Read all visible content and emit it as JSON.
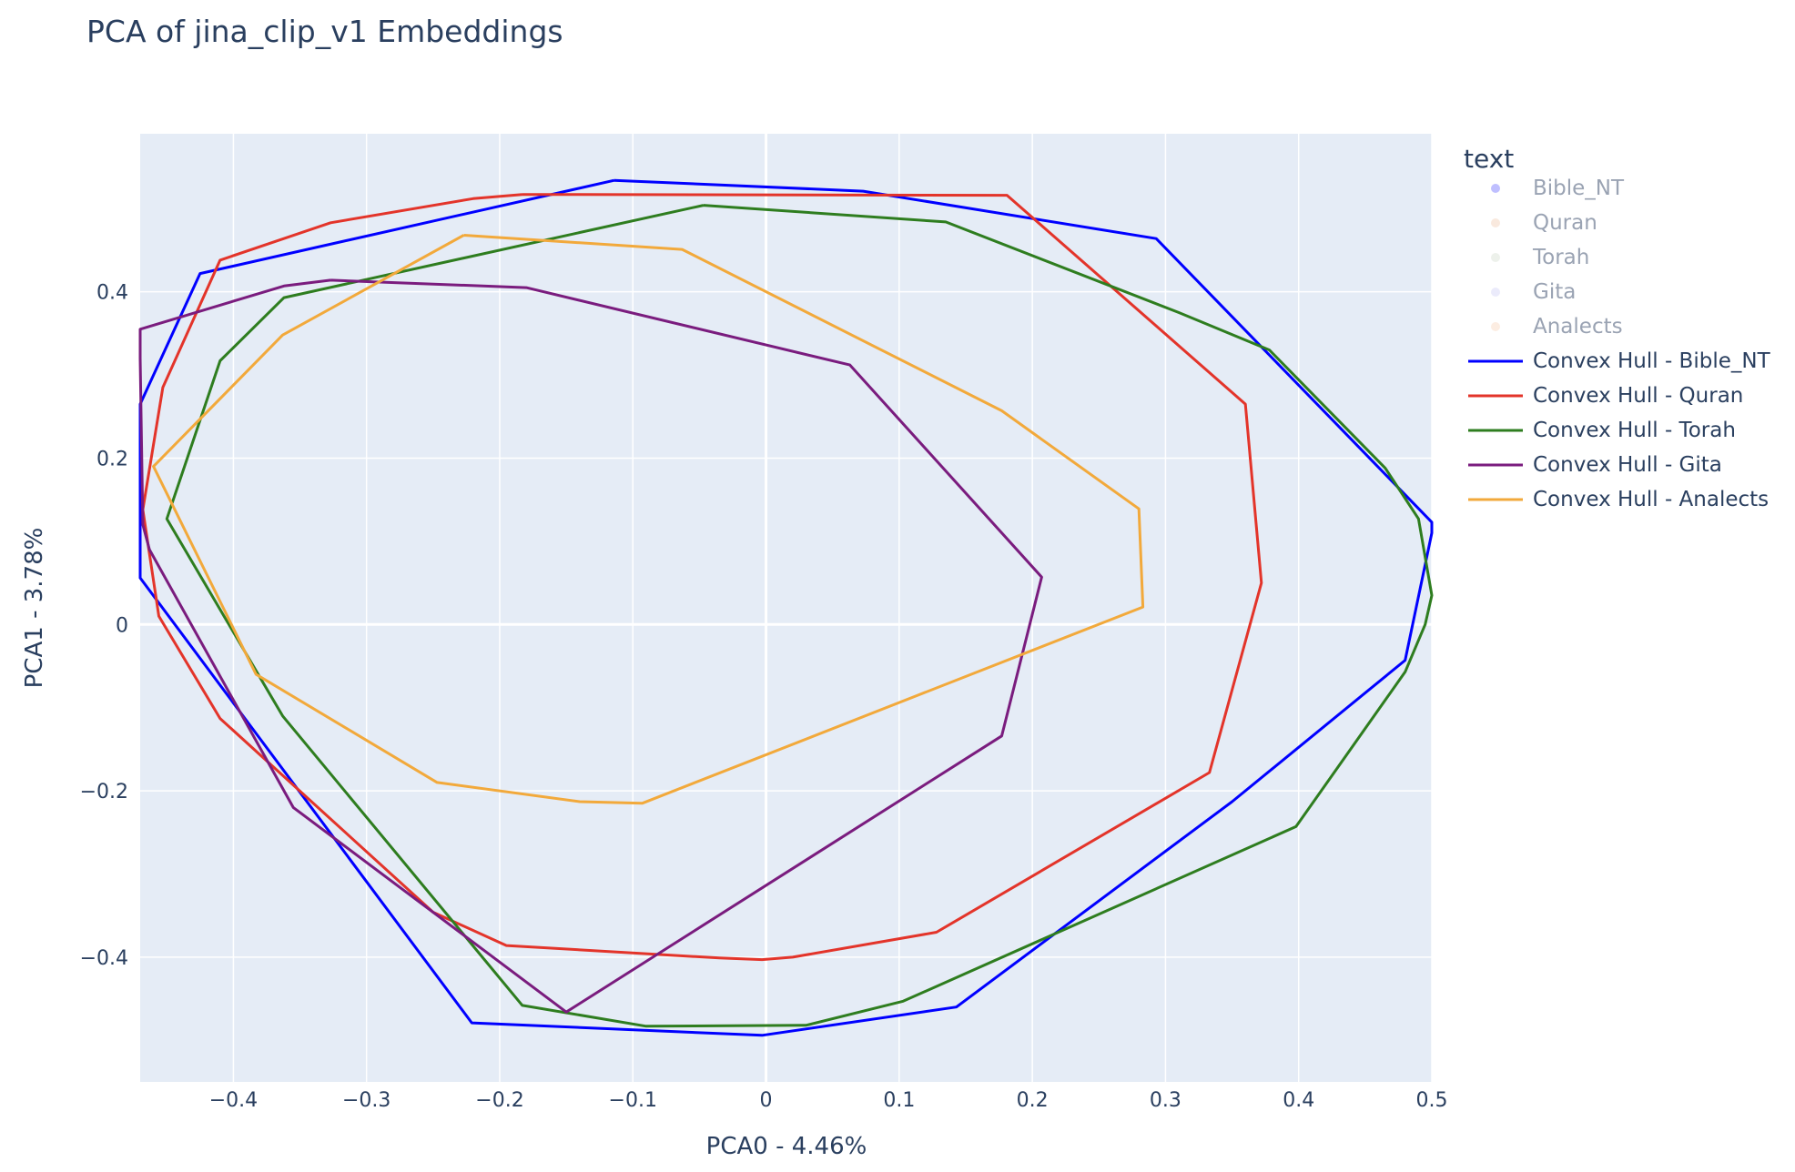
{
  "chart_data": {
    "type": "line",
    "title": "PCA of jina_clip_v1 Embeddings",
    "xlabel": "PCA0 - 4.46%",
    "ylabel": "PCA1 - 3.78%",
    "xlim": [
      -0.47,
      0.5
    ],
    "ylim": [
      -0.55,
      0.59
    ],
    "x_ticks": [
      {
        "value": -0.4,
        "label": "−0.4"
      },
      {
        "value": -0.3,
        "label": "−0.3"
      },
      {
        "value": -0.2,
        "label": "−0.2"
      },
      {
        "value": -0.1,
        "label": "−0.1"
      },
      {
        "value": 0,
        "label": "0"
      },
      {
        "value": 0.1,
        "label": "0.1"
      },
      {
        "value": 0.2,
        "label": "0.2"
      },
      {
        "value": 0.3,
        "label": "0.3"
      },
      {
        "value": 0.4,
        "label": "0.4"
      },
      {
        "value": 0.5,
        "label": "0.5"
      }
    ],
    "y_ticks": [
      {
        "value": -0.4,
        "label": "−0.4"
      },
      {
        "value": -0.2,
        "label": "−0.2"
      },
      {
        "value": 0,
        "label": "0"
      },
      {
        "value": 0.2,
        "label": "0.2"
      },
      {
        "value": 0.4,
        "label": "0.4"
      }
    ],
    "grid": true,
    "legend": {
      "title": "text",
      "placement": "right",
      "point_entries": [
        {
          "name": "Bible_NT",
          "color": "#0000ff"
        },
        {
          "name": "Quran",
          "color": "#e8a87c"
        },
        {
          "name": "Torah",
          "color": "#b9c9b0"
        },
        {
          "name": "Gita",
          "color": "#b0b0f0"
        },
        {
          "name": "Analects",
          "color": "#f2b68a"
        }
      ]
    },
    "series": [
      {
        "name": "Convex Hull - Bible_NT",
        "color": "#0000ff",
        "points": [
          [
            -0.114,
            0.534
          ],
          [
            0.073,
            0.521
          ],
          [
            0.293,
            0.464
          ],
          [
            0.5,
            0.123
          ],
          [
            0.5,
            0.11
          ],
          [
            0.48,
            -0.043
          ],
          [
            0.35,
            -0.213
          ],
          [
            0.143,
            -0.46
          ],
          [
            -0.003,
            -0.494
          ],
          [
            -0.221,
            -0.479
          ],
          [
            -0.47,
            0.056
          ],
          [
            -0.47,
            0.265
          ],
          [
            -0.425,
            0.422
          ],
          [
            -0.114,
            0.534
          ]
        ]
      },
      {
        "name": "Convex Hull - Quran",
        "color": "#e3342a",
        "points": [
          [
            -0.183,
            0.517
          ],
          [
            0.181,
            0.516
          ],
          [
            0.36,
            0.265
          ],
          [
            0.372,
            0.05
          ],
          [
            0.333,
            -0.178
          ],
          [
            0.128,
            -0.37
          ],
          [
            0.02,
            -0.4
          ],
          [
            -0.003,
            -0.403
          ],
          [
            -0.035,
            -0.401
          ],
          [
            -0.195,
            -0.386
          ],
          [
            -0.25,
            -0.346
          ],
          [
            -0.41,
            -0.113
          ],
          [
            -0.456,
            0.01
          ],
          [
            -0.468,
            0.138
          ],
          [
            -0.453,
            0.285
          ],
          [
            -0.41,
            0.438
          ],
          [
            -0.327,
            0.483
          ],
          [
            -0.22,
            0.512
          ],
          [
            -0.183,
            0.517
          ]
        ]
      },
      {
        "name": "Convex Hull - Torah",
        "color": "#2e7d1f",
        "points": [
          [
            -0.047,
            0.504
          ],
          [
            0.135,
            0.484
          ],
          [
            0.31,
            0.375
          ],
          [
            0.378,
            0.33
          ],
          [
            0.465,
            0.188
          ],
          [
            0.49,
            0.127
          ],
          [
            0.5,
            0.035
          ],
          [
            0.495,
            0.0
          ],
          [
            0.48,
            -0.057
          ],
          [
            0.398,
            -0.243
          ],
          [
            0.103,
            -0.453
          ],
          [
            0.03,
            -0.482
          ],
          [
            -0.09,
            -0.483
          ],
          [
            -0.183,
            -0.458
          ],
          [
            -0.363,
            -0.11
          ],
          [
            -0.45,
            0.127
          ],
          [
            -0.41,
            0.317
          ],
          [
            -0.362,
            0.393
          ],
          [
            -0.047,
            0.504
          ]
        ]
      },
      {
        "name": "Convex Hull - Gita",
        "color": "#7a1c7e",
        "points": [
          [
            -0.327,
            0.414
          ],
          [
            -0.18,
            0.405
          ],
          [
            0.063,
            0.312
          ],
          [
            0.207,
            0.057
          ],
          [
            0.177,
            -0.134
          ],
          [
            -0.15,
            -0.466
          ],
          [
            -0.355,
            -0.22
          ],
          [
            -0.463,
            0.09
          ],
          [
            -0.468,
            0.12
          ],
          [
            -0.47,
            0.32
          ],
          [
            -0.47,
            0.355
          ],
          [
            -0.362,
            0.407
          ],
          [
            -0.327,
            0.414
          ]
        ]
      },
      {
        "name": "Convex Hull - Analects",
        "color": "#f2a93b",
        "points": [
          [
            -0.227,
            0.468
          ],
          [
            -0.063,
            0.451
          ],
          [
            0.177,
            0.257
          ],
          [
            0.28,
            0.139
          ],
          [
            0.283,
            0.021
          ],
          [
            -0.093,
            -0.215
          ],
          [
            -0.14,
            -0.213
          ],
          [
            -0.247,
            -0.19
          ],
          [
            -0.383,
            -0.06
          ],
          [
            -0.46,
            0.19
          ],
          [
            -0.363,
            0.348
          ],
          [
            -0.227,
            0.468
          ]
        ]
      }
    ]
  }
}
